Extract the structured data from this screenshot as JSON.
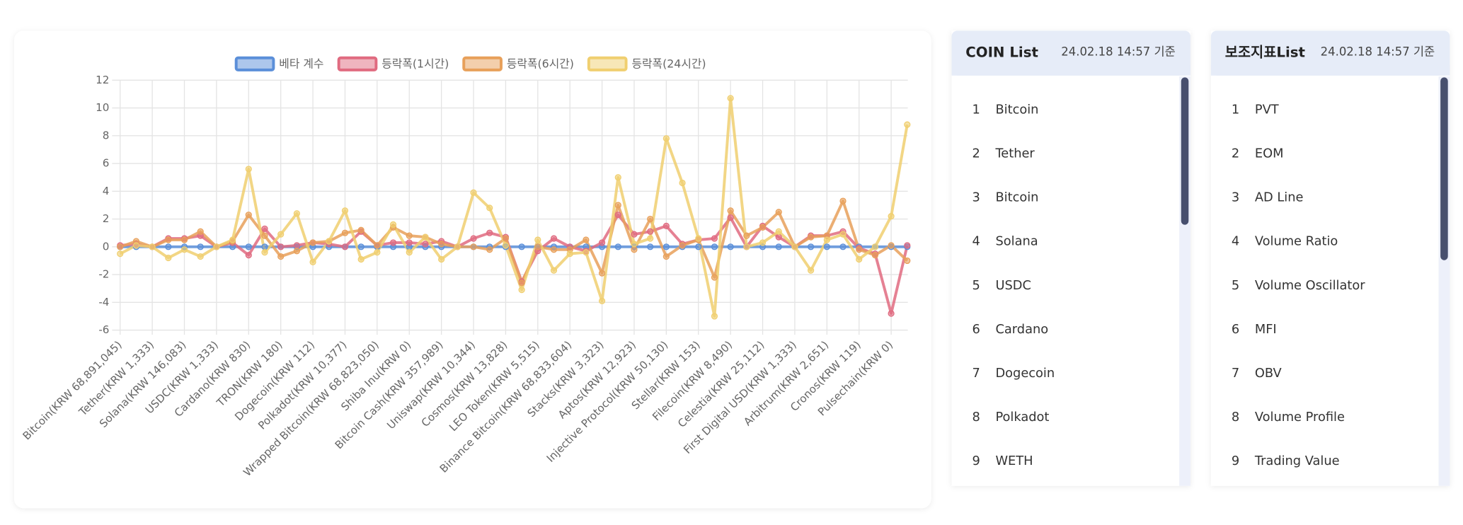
{
  "chart_data": {
    "type": "line",
    "categories": [
      "Bitcoin(KRW 68,891,045)",
      null,
      "Tether(KRW 1,333)",
      null,
      "Solana(KRW 146,083)",
      null,
      "USDC(KRW 1,333)",
      null,
      "Cardano(KRW 830)",
      null,
      "TRON(KRW 180)",
      null,
      "Dogecoin(KRW 112)",
      null,
      "Polkadot(KRW 10,377)",
      null,
      "Wrapped Bitcoin(KRW 68,823,050)",
      null,
      "Shiba Inu(KRW 0)",
      null,
      "Bitcoin Cash(KRW 357,989)",
      null,
      "Uniswap(KRW 10,344)",
      null,
      "Cosmos(KRW 13,828)",
      null,
      "LEO Token(KRW 5,515)",
      null,
      "Binance Bitcoin(KRW 68,833,604)",
      null,
      "Stacks(KRW 3,323)",
      null,
      "Aptos(KRW 12,923)",
      null,
      "Injective Protocol(KRW 50,130)",
      null,
      "Stellar(KRW 153)",
      null,
      "Filecoin(KRW 8,490)",
      null,
      "Celestia(KRW 25,112)",
      null,
      "First Digital USD(KRW 1,333)",
      null,
      "Arbitrum(KRW 2,651)",
      null,
      "Cronos(KRW 119)",
      null,
      "Pulsechain(KRW 0)",
      null
    ],
    "series": [
      {
        "name": "베타 계수",
        "color": "#5b8fd9",
        "values": [
          0,
          0,
          0,
          0,
          0,
          0,
          0,
          0,
          0,
          0,
          0,
          0,
          0,
          0,
          0,
          0,
          0,
          0,
          0,
          0,
          0,
          0,
          0,
          0,
          0,
          0,
          0,
          0,
          0,
          0,
          0,
          0,
          0,
          0,
          0,
          0,
          0,
          0,
          0,
          0,
          0,
          0,
          0,
          0,
          0,
          0,
          0,
          0,
          0,
          0
        ]
      },
      {
        "name": "등락폭(1시간)",
        "color": "#e06b80",
        "values": [
          0.1,
          0.2,
          0,
          0.6,
          0.6,
          0.8,
          0,
          0.3,
          -0.6,
          1.3,
          0,
          0.1,
          0.3,
          0.2,
          0,
          1.1,
          0.1,
          0.3,
          0.3,
          0.2,
          0.4,
          0,
          0.6,
          1.0,
          0.7,
          -2.5,
          -0.3,
          0.6,
          0,
          -0.3,
          0.3,
          2.3,
          0.9,
          1.1,
          1.5,
          0.2,
          0.5,
          0.6,
          2.1,
          0,
          1.5,
          0.7,
          0,
          0.8,
          0.8,
          1.1,
          -0.1,
          -0.5,
          -4.8,
          0.1
        ]
      },
      {
        "name": "등락폭(6시간)",
        "color": "#e8a05a",
        "values": [
          0,
          0.4,
          0,
          0.5,
          0.5,
          1.1,
          0,
          0.4,
          2.3,
          0.8,
          -0.7,
          -0.3,
          0.3,
          0.4,
          1.0,
          1.2,
          0.1,
          1.4,
          0.8,
          0.7,
          0.2,
          0,
          0,
          -0.2,
          0.6,
          -2.6,
          0,
          -0.2,
          -0.2,
          0.5,
          -1.9,
          3.0,
          -0.2,
          2.0,
          -0.7,
          0.1,
          0.5,
          -2.2,
          2.6,
          0.8,
          1.4,
          2.5,
          0,
          0.7,
          0.8,
          3.3,
          -0.2,
          -0.6,
          0.1,
          -1.0
        ]
      },
      {
        "name": "등락폭(24시간)",
        "color": "#f0cf70",
        "values": [
          -0.5,
          0.1,
          0,
          -0.8,
          -0.2,
          -0.7,
          0,
          0.5,
          5.6,
          -0.4,
          0.9,
          2.4,
          -1.1,
          0.4,
          2.6,
          -0.9,
          -0.4,
          1.6,
          -0.4,
          0.7,
          -0.9,
          0,
          3.9,
          2.8,
          0.1,
          -3.1,
          0.5,
          -1.7,
          -0.5,
          -0.4,
          -3.9,
          5.0,
          0.2,
          0.6,
          7.8,
          4.6,
          0.6,
          -5.0,
          10.7,
          0,
          0.3,
          1.1,
          0,
          -1.7,
          0.5,
          0.9,
          -0.9,
          0,
          2.2,
          8.8
        ]
      }
    ],
    "ylim": [
      -6,
      12
    ],
    "yticks": [
      -6,
      -4,
      -2,
      0,
      2,
      4,
      6,
      8,
      10,
      12
    ],
    "grid": true,
    "legend": "top"
  },
  "coin_list": {
    "title": "COIN List",
    "date": "24.02.18 14:57 기준",
    "items": [
      {
        "rank": 1,
        "name": "Bitcoin"
      },
      {
        "rank": 2,
        "name": "Tether"
      },
      {
        "rank": 3,
        "name": "Bitcoin"
      },
      {
        "rank": 4,
        "name": "Solana"
      },
      {
        "rank": 5,
        "name": "USDC"
      },
      {
        "rank": 6,
        "name": "Cardano"
      },
      {
        "rank": 7,
        "name": "Dogecoin"
      },
      {
        "rank": 8,
        "name": "Polkadot"
      },
      {
        "rank": 9,
        "name": "WETH"
      }
    ]
  },
  "indicator_list": {
    "title": "보조지표List",
    "date": "24.02.18 14:57 기준",
    "items": [
      {
        "rank": 1,
        "name": "PVT"
      },
      {
        "rank": 2,
        "name": "EOM"
      },
      {
        "rank": 3,
        "name": "AD Line"
      },
      {
        "rank": 4,
        "name": "Volume Ratio"
      },
      {
        "rank": 5,
        "name": "Volume Oscillator"
      },
      {
        "rank": 6,
        "name": "MFI"
      },
      {
        "rank": 7,
        "name": "OBV"
      },
      {
        "rank": 8,
        "name": "Volume Profile"
      },
      {
        "rank": 9,
        "name": "Trading Value"
      }
    ]
  }
}
